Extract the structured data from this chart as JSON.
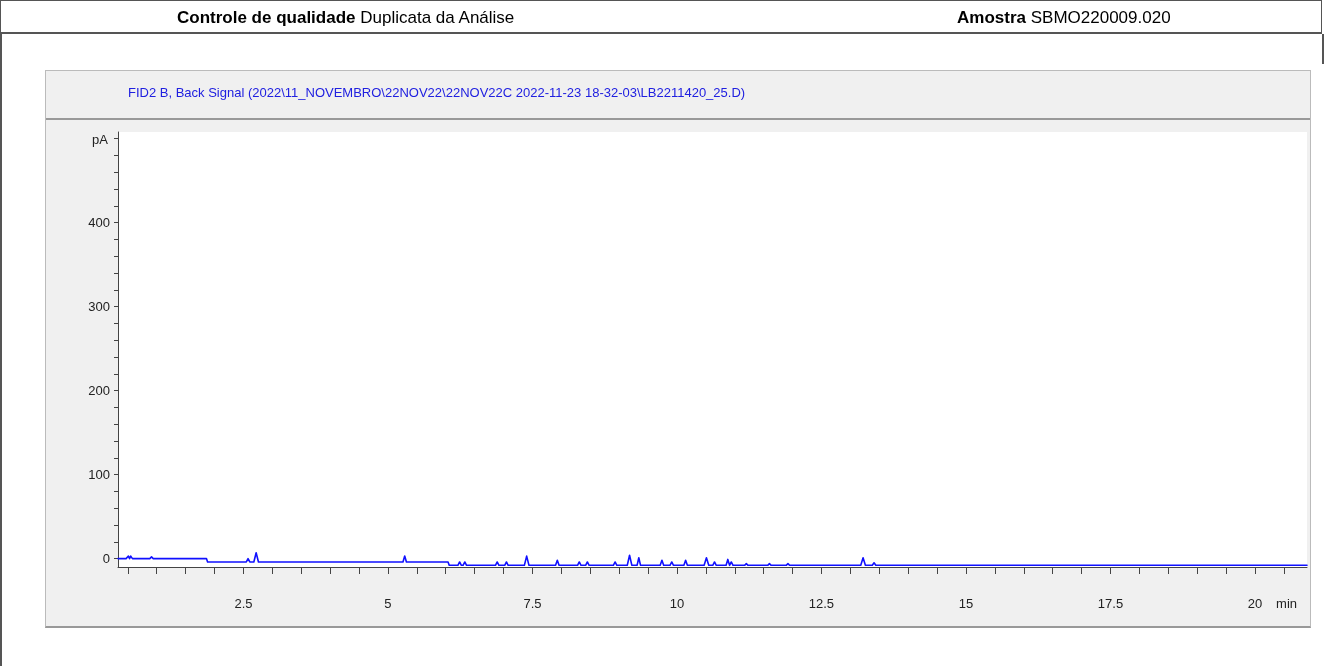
{
  "chart_data": {
    "type": "line",
    "title": "FID2 B, Back Signal (2022\\11_NOVEMBRO\\22NOV22\\22NOV22C 2022-11-23 18-32-03\\LB2211420_25.D)",
    "xlabel": "min",
    "ylabel": "pA",
    "annotations": [
      "Controle de qualidade",
      "Duplicata da Análise",
      "Amostra",
      "SBMO220009.020"
    ],
    "series": [
      {
        "color": "#1010ff",
        "x": [
          0.33,
          0.47,
          0.51,
          0.53,
          0.55,
          0.58,
          0.88,
          0.91,
          0.94,
          1.86,
          1.88,
          2.55,
          2.58,
          2.61,
          2.68,
          2.72,
          2.76,
          5.26,
          5.29,
          5.32,
          6.04,
          6.06,
          6.21,
          6.24,
          6.27,
          6.3,
          6.33,
          6.36,
          6.86,
          6.89,
          6.92,
          7.02,
          7.05,
          7.08,
          7.36,
          7.4,
          7.44,
          7.9,
          7.93,
          7.96,
          8.28,
          8.31,
          8.34,
          8.42,
          8.45,
          8.48,
          8.9,
          8.93,
          8.96,
          9.14,
          9.18,
          9.22,
          9.31,
          9.34,
          9.37,
          9.71,
          9.74,
          9.77,
          9.88,
          9.91,
          9.94,
          10.12,
          10.15,
          10.18,
          10.47,
          10.51,
          10.55,
          10.62,
          10.65,
          10.68,
          10.85,
          10.88,
          10.91,
          10.94,
          10.97,
          11.17,
          11.2,
          11.23,
          11.57,
          11.6,
          11.63,
          11.89,
          11.92,
          11.95,
          13.18,
          13.22,
          13.26,
          13.38,
          13.41,
          13.44,
          20.9
        ],
        "values": [
          0,
          0,
          3,
          0,
          3,
          0,
          0,
          2,
          0,
          0,
          -4,
          -4,
          0,
          -4,
          -4,
          7,
          -4,
          -4,
          3,
          -4,
          -4,
          -8,
          -8,
          -4,
          -8,
          -8,
          -4,
          -8,
          -8,
          -4,
          -8,
          -8,
          -4,
          -8,
          -8,
          3,
          -8,
          -8,
          -2,
          -8,
          -8,
          -4,
          -8,
          -8,
          -4,
          -8,
          -8,
          -4,
          -8,
          -8,
          4,
          -8,
          -8,
          1,
          -8,
          -8,
          -2,
          -8,
          -8,
          -4,
          -8,
          -8,
          -2,
          -8,
          -8,
          1,
          -8,
          -8,
          -4,
          -8,
          -8,
          -1,
          -8,
          -4,
          -8,
          -8,
          -6,
          -8,
          -8,
          -6,
          -8,
          -8,
          -6,
          -8,
          -8,
          1,
          -8,
          -8,
          -5,
          -8,
          -8
        ]
      }
    ],
    "xlim": [
      0.33,
      20.9
    ],
    "xticks": [
      {
        "value": 0.5,
        "label": null
      },
      {
        "value": 1,
        "label": null
      },
      {
        "value": 1.5,
        "label": null
      },
      {
        "value": 2,
        "label": null
      },
      2.5,
      {
        "value": 3,
        "label": null
      },
      {
        "value": 3.5,
        "label": null
      },
      {
        "value": 4,
        "label": null
      },
      {
        "value": 4.5,
        "label": null
      },
      5,
      {
        "value": 5.5,
        "label": null
      },
      {
        "value": 6,
        "label": null
      },
      {
        "value": 6.5,
        "label": null
      },
      {
        "value": 7,
        "label": null
      },
      7.5,
      {
        "value": 8,
        "label": null
      },
      {
        "value": 8.5,
        "label": null
      },
      {
        "value": 9,
        "label": null
      },
      {
        "value": 9.5,
        "label": null
      },
      10,
      {
        "value": 10.5,
        "label": null
      },
      {
        "value": 11,
        "label": null
      },
      {
        "value": 11.5,
        "label": null
      },
      {
        "value": 12,
        "label": null
      },
      12.5,
      {
        "value": 13,
        "label": null
      },
      {
        "value": 13.5,
        "label": null
      },
      {
        "value": 14,
        "label": null
      },
      {
        "value": 14.5,
        "label": null
      },
      15,
      {
        "value": 15.5,
        "label": null
      },
      {
        "value": 16,
        "label": null
      },
      {
        "value": 16.5,
        "label": null
      },
      {
        "value": 17,
        "label": null
      },
      17.5,
      {
        "value": 18,
        "label": null
      },
      {
        "value": 18.5,
        "label": null
      },
      {
        "value": 19,
        "label": null
      },
      {
        "value": 19.5,
        "label": null
      },
      20,
      {
        "value": 20.5,
        "label": null
      }
    ],
    "ylim": [
      -10,
      508
    ],
    "yticks": [
      0,
      {
        "value": 20,
        "label": null
      },
      {
        "value": 40,
        "label": null
      },
      {
        "value": 60,
        "label": null
      },
      {
        "value": 80,
        "label": null
      },
      100,
      {
        "value": 120,
        "label": null
      },
      {
        "value": 140,
        "label": null
      },
      {
        "value": 160,
        "label": null
      },
      {
        "value": 180,
        "label": null
      },
      200,
      {
        "value": 220,
        "label": null
      },
      {
        "value": 240,
        "label": null
      },
      {
        "value": 260,
        "label": null
      },
      {
        "value": 280,
        "label": null
      },
      300,
      {
        "value": 320,
        "label": null
      },
      {
        "value": 340,
        "label": null
      },
      {
        "value": 360,
        "label": null
      },
      {
        "value": 380,
        "label": null
      },
      400,
      {
        "value": 420,
        "label": null
      },
      {
        "value": 440,
        "label": null
      },
      {
        "value": 460,
        "label": null
      },
      {
        "value": 480,
        "label": null
      },
      {
        "value": 500,
        "label": null
      }
    ],
    "marker": "none",
    "line_style": "solid",
    "grid": false
  }
}
